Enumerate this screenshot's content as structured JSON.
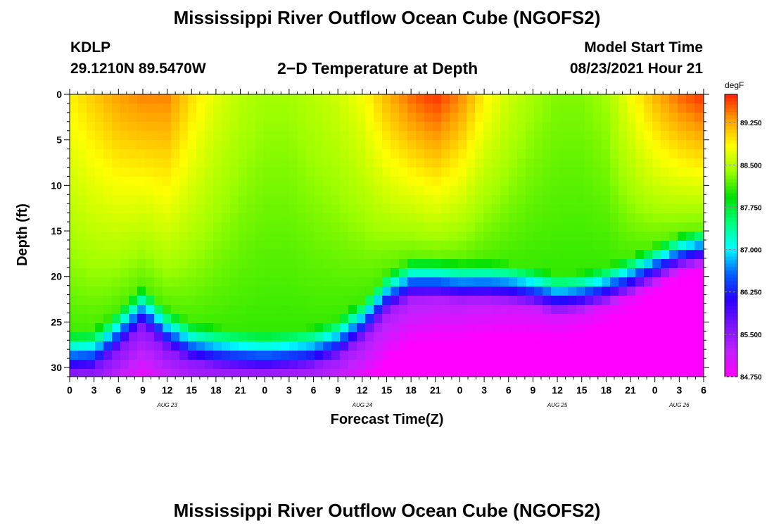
{
  "header": {
    "title_top": "Mississippi River Outflow Ocean Cube (NGOFS2)",
    "title_bottom": "Mississippi River Outflow Ocean Cube (NGOFS2)",
    "station": "KDLP",
    "coords": "29.1210N  89.5470W",
    "subtitle": "2−D Temperature at Depth",
    "model_label": "Model Start Time",
    "model_time": "08/23/2021 Hour 21"
  },
  "chart_data": {
    "type": "heatmap",
    "title": "2−D Temperature at Depth",
    "xlabel": "Forecast Time(Z)",
    "ylabel": "Depth (ft)",
    "x_range_hours": [
      0,
      78
    ],
    "ylim": [
      0,
      31
    ],
    "y_inverted": true,
    "x_tick_labels": [
      "0",
      "3",
      "6",
      "9",
      "12",
      "15",
      "18",
      "21",
      "0",
      "3",
      "6",
      "9",
      "12",
      "15",
      "18",
      "21",
      "0",
      "3",
      "6",
      "9",
      "12",
      "15",
      "18",
      "21",
      "0",
      "3",
      "6"
    ],
    "date_labels": [
      {
        "text": "AUG 23",
        "at_hour": 12
      },
      {
        "text": "AUG 24",
        "at_hour": 36
      },
      {
        "text": "AUG 25",
        "at_hour": 60
      },
      {
        "text": "AUG 26",
        "at_hour": 75
      }
    ],
    "y_ticks": [
      0,
      5,
      10,
      15,
      20,
      25,
      30
    ],
    "colorbar": {
      "unit": "degF",
      "min": 84.75,
      "max": 89.75,
      "labels": [
        "89.250",
        "88.500",
        "87.750",
        "87.000",
        "86.250",
        "85.500",
        "84.750"
      ],
      "colors": [
        "#ff00ff",
        "#c020ff",
        "#7a14ff",
        "#2a00ff",
        "#0060ff",
        "#00ffff",
        "#00ff7a",
        "#00e000",
        "#a0ff00",
        "#ffff00",
        "#ffa000",
        "#ff2000"
      ]
    },
    "surface_temp_by_hour": [
      {
        "hour": 0,
        "value": 88.9
      },
      {
        "hour": 3,
        "value": 89.1
      },
      {
        "hour": 6,
        "value": 89.3
      },
      {
        "hour": 9,
        "value": 89.4
      },
      {
        "hour": 12,
        "value": 89.4
      },
      {
        "hour": 15,
        "value": 89.0
      },
      {
        "hour": 18,
        "value": 88.7
      },
      {
        "hour": 21,
        "value": 88.5
      },
      {
        "hour": 24,
        "value": 88.4
      },
      {
        "hour": 27,
        "value": 88.4
      },
      {
        "hour": 30,
        "value": 88.5
      },
      {
        "hour": 33,
        "value": 88.6
      },
      {
        "hour": 36,
        "value": 88.8
      },
      {
        "hour": 39,
        "value": 89.2
      },
      {
        "hour": 42,
        "value": 89.5
      },
      {
        "hour": 45,
        "value": 89.7
      },
      {
        "hour": 48,
        "value": 89.4
      },
      {
        "hour": 51,
        "value": 88.9
      },
      {
        "hour": 54,
        "value": 88.6
      },
      {
        "hour": 57,
        "value": 88.4
      },
      {
        "hour": 60,
        "value": 88.3
      },
      {
        "hour": 63,
        "value": 88.3
      },
      {
        "hour": 66,
        "value": 88.4
      },
      {
        "hour": 69,
        "value": 88.8
      },
      {
        "hour": 72,
        "value": 89.2
      },
      {
        "hour": 75,
        "value": 89.5
      },
      {
        "hour": 78,
        "value": 89.7
      }
    ],
    "thermocline_depth_ft_by_hour": [
      {
        "hour": 0,
        "value": 28.0
      },
      {
        "hour": 3,
        "value": 27.8
      },
      {
        "hour": 6,
        "value": 25.5
      },
      {
        "hour": 9,
        "value": 23.0
      },
      {
        "hour": 12,
        "value": 25.5
      },
      {
        "hour": 15,
        "value": 27.0
      },
      {
        "hour": 18,
        "value": 27.5
      },
      {
        "hour": 21,
        "value": 27.8
      },
      {
        "hour": 24,
        "value": 28.0
      },
      {
        "hour": 27,
        "value": 27.8
      },
      {
        "hour": 30,
        "value": 27.5
      },
      {
        "hour": 33,
        "value": 26.5
      },
      {
        "hour": 36,
        "value": 24.5
      },
      {
        "hour": 39,
        "value": 21.5
      },
      {
        "hour": 42,
        "value": 20.0
      },
      {
        "hour": 45,
        "value": 20.0
      },
      {
        "hour": 48,
        "value": 20.3
      },
      {
        "hour": 51,
        "value": 20.3
      },
      {
        "hour": 54,
        "value": 20.5
      },
      {
        "hour": 57,
        "value": 21.0
      },
      {
        "hour": 60,
        "value": 21.8
      },
      {
        "hour": 63,
        "value": 21.5
      },
      {
        "hour": 66,
        "value": 20.8
      },
      {
        "hour": 69,
        "value": 19.8
      },
      {
        "hour": 72,
        "value": 18.5
      },
      {
        "hour": 75,
        "value": 17.2
      },
      {
        "hour": 78,
        "value": 16.5
      }
    ],
    "bottom_temp_by_hour": [
      {
        "hour": 0,
        "value": 85.6
      },
      {
        "hour": 39,
        "value": 85.4
      },
      {
        "hour": 78,
        "value": 84.8
      }
    ]
  }
}
